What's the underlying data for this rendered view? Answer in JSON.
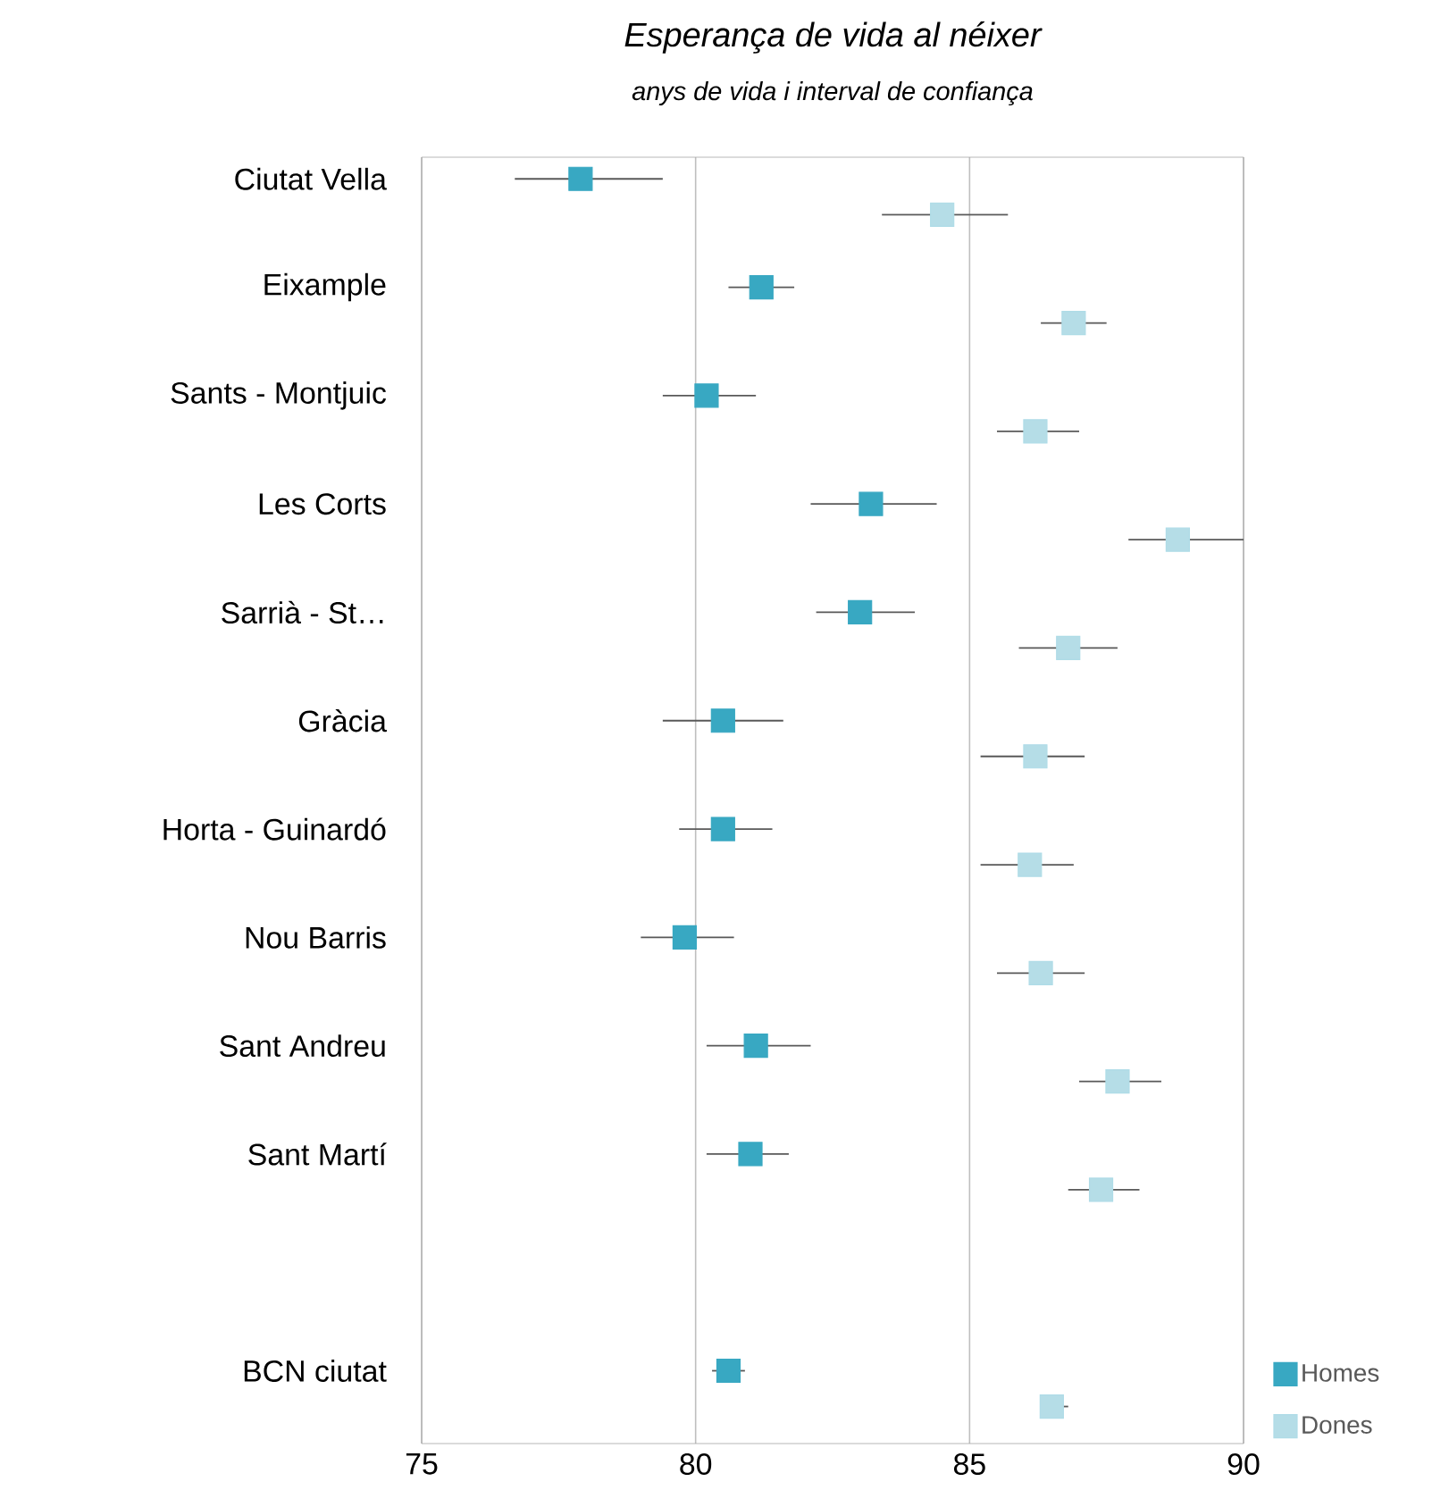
{
  "chart_data": {
    "type": "scatter",
    "orientation": "horizontal",
    "title": "Esperança de vida al néixer",
    "subtitle": "anys de vida i interval de confiança",
    "categories": [
      "Ciutat Vella",
      "Eixample",
      "Sants - Montjuic",
      "Les Corts",
      "Sarrià - St…",
      "Gràcia",
      "Horta - Guinardó",
      "Nou Barris",
      "Sant Andreu",
      "Sant Martí",
      null,
      "BCN ciutat"
    ],
    "series": [
      {
        "name": "Homes",
        "color": "#38a8c2",
        "values": [
          77.9,
          81.2,
          80.2,
          83.2,
          83.0,
          80.5,
          80.5,
          79.8,
          81.1,
          81.0,
          null,
          80.6
        ],
        "errors": [
          [
            76.7,
            79.4
          ],
          [
            80.6,
            81.8
          ],
          [
            79.4,
            81.1
          ],
          [
            82.1,
            84.4
          ],
          [
            82.2,
            84.0
          ],
          [
            79.4,
            81.6
          ],
          [
            79.7,
            81.4
          ],
          [
            79.0,
            80.7
          ],
          [
            80.2,
            82.1
          ],
          [
            80.2,
            81.7
          ],
          null,
          [
            80.3,
            80.9
          ]
        ]
      },
      {
        "name": "Dones",
        "color": "#b5dde7",
        "values": [
          84.5,
          86.9,
          86.2,
          88.8,
          86.8,
          86.2,
          86.1,
          86.3,
          87.7,
          87.4,
          null,
          86.5
        ],
        "errors": [
          [
            83.4,
            85.7
          ],
          [
            86.3,
            87.5
          ],
          [
            85.5,
            87.0
          ],
          [
            87.9,
            90.0
          ],
          [
            85.9,
            87.7
          ],
          [
            85.2,
            87.1
          ],
          [
            85.2,
            86.9
          ],
          [
            85.5,
            87.1
          ],
          [
            87.0,
            88.5
          ],
          [
            86.8,
            88.1
          ],
          null,
          [
            86.3,
            86.8
          ]
        ]
      }
    ],
    "xlim": [
      75,
      90
    ],
    "xticks": [
      75,
      80,
      85,
      90
    ],
    "grid": "x",
    "marker": "square",
    "legend": "bottom right"
  }
}
